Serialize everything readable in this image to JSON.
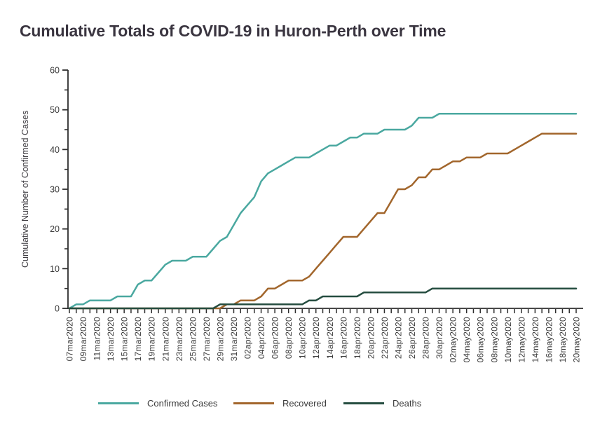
{
  "page": {
    "title": "Cumulative Totals of COVID-19 in Huron-Perth over Time"
  },
  "chart_data": {
    "type": "line",
    "title": "Cumulative Totals of COVID-19 in Huron-Perth over Time",
    "xlabel": "",
    "ylabel": "Cumulative Number of Confirmed Cases",
    "ylim": [
      0,
      60
    ],
    "yticks": [
      0,
      10,
      20,
      30,
      40,
      50,
      60
    ],
    "y_minor_tick_step": 5,
    "grid": "off",
    "legend_position": "bottom",
    "x_label_every": 2,
    "x": [
      "07mar2020",
      "08mar2020",
      "09mar2020",
      "10mar2020",
      "11mar2020",
      "12mar2020",
      "13mar2020",
      "14mar2020",
      "15mar2020",
      "16mar2020",
      "17mar2020",
      "18mar2020",
      "19mar2020",
      "20mar2020",
      "21mar2020",
      "22mar2020",
      "23mar2020",
      "24mar2020",
      "25mar2020",
      "26mar2020",
      "27mar2020",
      "28mar2020",
      "29mar2020",
      "30mar2020",
      "31mar2020",
      "01apr2020",
      "02apr2020",
      "03apr2020",
      "04apr2020",
      "05apr2020",
      "06apr2020",
      "07apr2020",
      "08apr2020",
      "09apr2020",
      "10apr2020",
      "11apr2020",
      "12apr2020",
      "13apr2020",
      "14apr2020",
      "15apr2020",
      "16apr2020",
      "17apr2020",
      "18apr2020",
      "19apr2020",
      "20apr2020",
      "21apr2020",
      "22apr2020",
      "23apr2020",
      "24apr2020",
      "25apr2020",
      "26apr2020",
      "27apr2020",
      "28apr2020",
      "29apr2020",
      "30apr2020",
      "01may2020",
      "02may2020",
      "03may2020",
      "04may2020",
      "05may2020",
      "06may2020",
      "07may2020",
      "08may2020",
      "09may2020",
      "10may2020",
      "11may2020",
      "12may2020",
      "13may2020",
      "14may2020",
      "15may2020",
      "16may2020",
      "17may2020",
      "18may2020",
      "19may2020",
      "20may2020"
    ],
    "series": [
      {
        "name": "Confirmed Cases",
        "color": "#4aa8a0",
        "values": [
          0,
          1,
          1,
          2,
          2,
          2,
          2,
          3,
          3,
          3,
          6,
          7,
          7,
          9,
          11,
          12,
          12,
          12,
          13,
          13,
          13,
          15,
          17,
          18,
          21,
          24,
          26,
          28,
          32,
          34,
          35,
          36,
          37,
          38,
          38,
          38,
          39,
          40,
          41,
          41,
          42,
          43,
          43,
          44,
          44,
          44,
          45,
          45,
          45,
          45,
          46,
          48,
          48,
          48,
          49,
          49,
          49,
          49,
          49,
          49,
          49,
          49,
          49,
          49,
          49,
          49,
          49,
          49,
          49,
          49,
          49,
          49,
          49,
          49,
          49
        ]
      },
      {
        "name": "Recovered",
        "color": "#a2662c",
        "values": [
          0,
          0,
          0,
          0,
          0,
          0,
          0,
          0,
          0,
          0,
          0,
          0,
          0,
          0,
          0,
          0,
          0,
          0,
          0,
          0,
          0,
          0,
          0,
          1,
          1,
          2,
          2,
          2,
          3,
          5,
          5,
          6,
          7,
          7,
          7,
          8,
          10,
          12,
          14,
          16,
          18,
          18,
          18,
          20,
          22,
          24,
          24,
          27,
          30,
          30,
          31,
          33,
          33,
          35,
          35,
          36,
          37,
          37,
          38,
          38,
          38,
          39,
          39,
          39,
          39,
          40,
          41,
          42,
          43,
          44,
          44,
          44,
          44,
          44,
          44
        ]
      },
      {
        "name": "Deaths",
        "color": "#254d40",
        "values": [
          0,
          0,
          0,
          0,
          0,
          0,
          0,
          0,
          0,
          0,
          0,
          0,
          0,
          0,
          0,
          0,
          0,
          0,
          0,
          0,
          0,
          0,
          1,
          1,
          1,
          1,
          1,
          1,
          1,
          1,
          1,
          1,
          1,
          1,
          1,
          2,
          2,
          3,
          3,
          3,
          3,
          3,
          3,
          4,
          4,
          4,
          4,
          4,
          4,
          4,
          4,
          4,
          4,
          5,
          5,
          5,
          5,
          5,
          5,
          5,
          5,
          5,
          5,
          5,
          5,
          5,
          5,
          5,
          5,
          5,
          5,
          5,
          5,
          5,
          5
        ]
      }
    ],
    "axis_color": "#2e2e2e",
    "text_color": "#3b3b3b"
  }
}
